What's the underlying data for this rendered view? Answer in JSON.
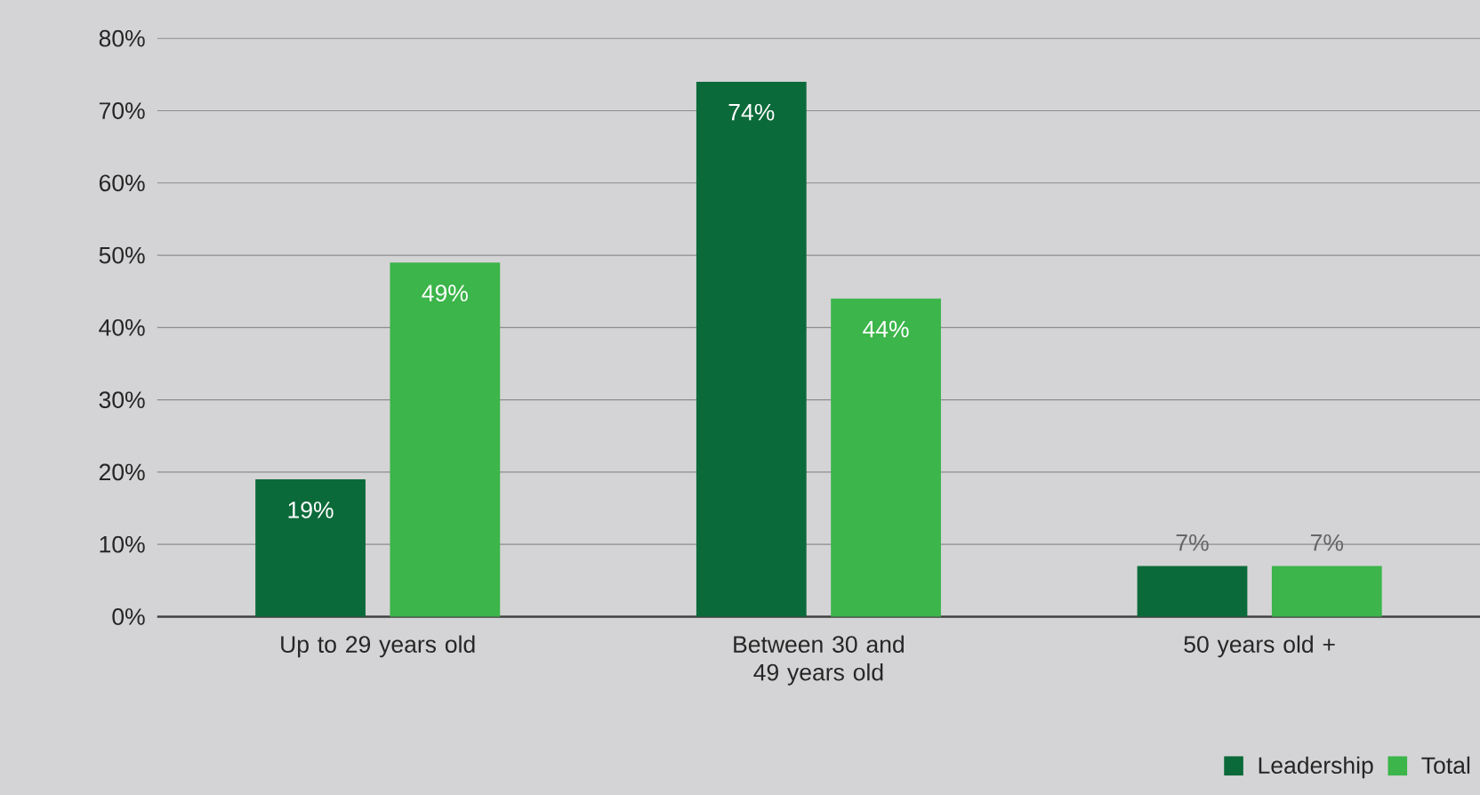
{
  "chart_data": {
    "type": "bar",
    "categories": [
      "Up to 29 years old",
      "Between 30 and 49 years old",
      "50 years old +"
    ],
    "series": [
      {
        "name": "Leadership",
        "color": "#0b6a3a",
        "values": [
          19,
          74,
          7
        ],
        "value_labels": [
          "19%",
          "74%",
          "7%"
        ]
      },
      {
        "name": "Total",
        "color": "#3cb54a",
        "values": [
          49,
          44,
          7
        ],
        "value_labels": [
          "49%",
          "44%",
          "7%"
        ]
      }
    ],
    "ylim": [
      0,
      80
    ],
    "yticks": [
      {
        "value": 0,
        "label": "0%"
      },
      {
        "value": 10,
        "label": "10%"
      },
      {
        "value": 20,
        "label": "20%"
      },
      {
        "value": 30,
        "label": "30%"
      },
      {
        "value": 40,
        "label": "40%"
      },
      {
        "value": 50,
        "label": "50%"
      },
      {
        "value": 60,
        "label": "60%"
      },
      {
        "value": 70,
        "label": "70%"
      },
      {
        "value": 80,
        "label": "80%"
      }
    ],
    "grid": "y",
    "legend": "bottom right"
  }
}
